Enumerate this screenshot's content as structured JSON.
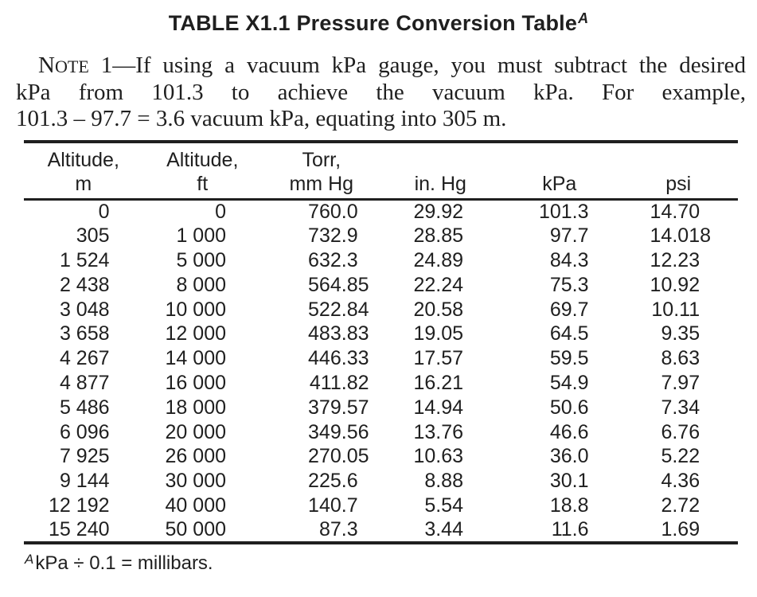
{
  "title": {
    "text": "TABLE X1.1 Pressure Conversion Table",
    "footnote_marker": "A"
  },
  "note": {
    "label_first_letter": "N",
    "label_small_caps": "OTE",
    "lead_in": " 1—",
    "line1": "If using a vacuum kPa gauge, you must subtract the desired",
    "line2": "kPa from 101.3 to achieve the vacuum kPa. For example,",
    "line3": "101.3 – 97.7 = 3.6 vacuum kPa, equating into 305 m."
  },
  "table": {
    "column_headers": [
      [
        "Altitude,",
        "m"
      ],
      [
        "Altitude,",
        "ft"
      ],
      [
        "Torr,",
        "mm Hg"
      ],
      [
        "in. Hg"
      ],
      [
        "kPa"
      ],
      [
        "psi"
      ]
    ],
    "rows": [
      [
        "0",
        "0",
        "760.0",
        "29.92",
        "101.3",
        "14.70"
      ],
      [
        "305",
        "1 000",
        "732.9",
        "28.85",
        "97.7",
        "14.018"
      ],
      [
        "1 524",
        "5 000",
        "632.3",
        "24.89",
        "84.3",
        "12.23"
      ],
      [
        "2 438",
        "8 000",
        "564.85",
        "22.24",
        "75.3",
        "10.92"
      ],
      [
        "3 048",
        "10 000",
        "522.84",
        "20.58",
        "69.7",
        "10.11"
      ],
      [
        "3 658",
        "12 000",
        "483.83",
        "19.05",
        "64.5",
        "9.35"
      ],
      [
        "4 267",
        "14 000",
        "446.33",
        "17.57",
        "59.5",
        "8.63"
      ],
      [
        "4 877",
        "16 000",
        "411.82",
        "16.21",
        "54.9",
        "7.97"
      ],
      [
        "5 486",
        "18 000",
        "379.57",
        "14.94",
        "50.6",
        "7.34"
      ],
      [
        "6 096",
        "20 000",
        "349.56",
        "13.76",
        "46.6",
        "6.76"
      ],
      [
        "7 925",
        "26 000",
        "270.05",
        "10.63",
        "36.0",
        "5.22"
      ],
      [
        "9 144",
        "30 000",
        "225.6",
        "8.88",
        "30.1",
        "4.36"
      ],
      [
        "12 192",
        "40 000",
        "140.7",
        "5.54",
        "18.8",
        "2.72"
      ],
      [
        "15 240",
        "50 000",
        "87.3",
        "3.44",
        "11.6",
        "1.69"
      ]
    ]
  },
  "footnote": {
    "marker": "A",
    "text": "kPa ÷ 0.1 = millibars."
  },
  "colors": {
    "text": "#1f1f1f",
    "rule": "#1f1f1f",
    "background": "#ffffff"
  }
}
